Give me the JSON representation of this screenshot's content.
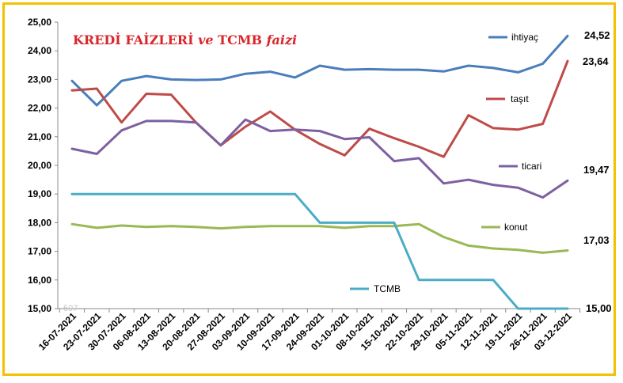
{
  "chart_data": {
    "type": "line",
    "title": "KREDİ FAİZLERİ ve TCMB faizi",
    "ylim": [
      15,
      25
    ],
    "yticks": [
      "15,00",
      "16,00",
      "17,00",
      "18,00",
      "19,00",
      "20,00",
      "21,00",
      "22,00",
      "23,00",
      "24,00",
      "25,00"
    ],
    "categories": [
      "16-07-2021",
      "23-07-2021",
      "30-07-2021",
      "06-08-2021",
      "13-08-2021",
      "20-08-2021",
      "27-08-2021",
      "03-09-2021",
      "10-09-2021",
      "17-09-2021",
      "24-09-2021",
      "01-10-2021",
      "08-10-2021",
      "15-10-2021",
      "22-10-2021",
      "29-10-2021",
      "05-11-2021",
      "12-11-2021",
      "19-11-2021",
      "26-11-2021",
      "03-12-2021"
    ],
    "series": [
      {
        "name": "ihtiyaç",
        "color": "#4a7ebb",
        "end_label": "24,52",
        "values": [
          22.95,
          22.1,
          22.95,
          23.12,
          23.0,
          22.98,
          23.0,
          23.2,
          23.27,
          23.07,
          23.48,
          23.34,
          23.36,
          23.34,
          23.34,
          23.28,
          23.48,
          23.4,
          23.25,
          23.55,
          24.52
        ]
      },
      {
        "name": "taşıt",
        "color": "#be4b48",
        "end_label": "23,64",
        "values": [
          22.62,
          22.68,
          21.5,
          22.5,
          22.47,
          21.5,
          20.7,
          21.35,
          21.88,
          21.25,
          20.75,
          20.35,
          21.28,
          20.95,
          20.65,
          20.3,
          21.75,
          21.3,
          21.25,
          21.45,
          23.64
        ]
      },
      {
        "name": "ticari",
        "color": "#7d60a0",
        "end_label": "19,47",
        "values": [
          20.58,
          20.4,
          21.22,
          21.55,
          21.55,
          21.5,
          20.7,
          21.6,
          21.2,
          21.25,
          21.2,
          20.92,
          20.98,
          20.15,
          20.25,
          19.37,
          19.5,
          19.32,
          19.22,
          18.88,
          19.47
        ]
      },
      {
        "name": "konut",
        "color": "#98b954",
        "end_label": "17,03",
        "values": [
          17.95,
          17.82,
          17.9,
          17.85,
          17.88,
          17.85,
          17.8,
          17.85,
          17.88,
          17.88,
          17.88,
          17.82,
          17.88,
          17.88,
          17.95,
          17.5,
          17.2,
          17.1,
          17.05,
          16.95,
          17.03
        ]
      },
      {
        "name": "TCMB",
        "color": "#4bacc6",
        "end_label": "15,00",
        "steps": [
          19.0,
          19.0,
          19.0,
          19.0,
          19.0,
          19.0,
          19.0,
          19.0,
          19.0,
          19.0,
          18.0,
          18.0,
          18.0,
          18.0,
          16.0,
          16.0,
          16.0,
          16.0,
          15.0,
          15.0,
          15.0
        ]
      }
    ],
    "watermark": "507"
  }
}
